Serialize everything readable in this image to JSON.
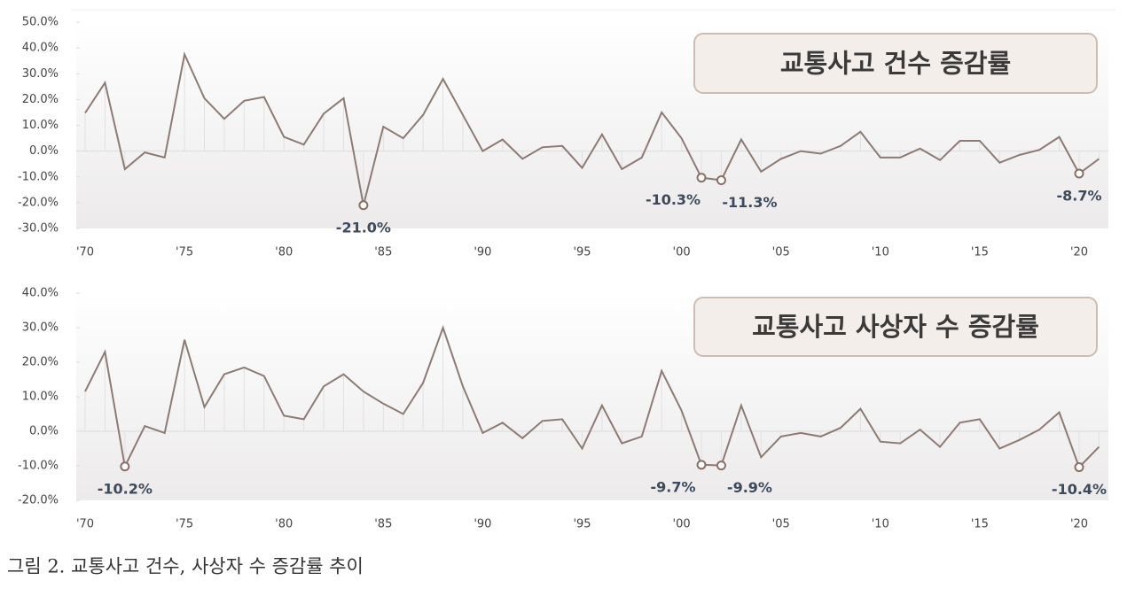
{
  "chart_data": [
    {
      "type": "line",
      "title": "교통사고 건수 증감률",
      "color": "#8c7b75",
      "categories": [
        "'70",
        null,
        null,
        null,
        null,
        "'75",
        null,
        null,
        null,
        null,
        "'80",
        null,
        null,
        null,
        null,
        "'85",
        null,
        null,
        null,
        null,
        "'90",
        null,
        null,
        null,
        null,
        "'95",
        null,
        null,
        null,
        null,
        "'00",
        null,
        null,
        null,
        null,
        "'05",
        null,
        null,
        null,
        null,
        "'10",
        null,
        null,
        null,
        null,
        "'15",
        null,
        null,
        null,
        null,
        "'20",
        null
      ],
      "values": [
        14.8,
        26.5,
        -7,
        -0.5,
        -2.5,
        37.5,
        20.5,
        12.5,
        19.5,
        21,
        5.5,
        2.5,
        14.5,
        20.5,
        -21.0,
        9.5,
        5,
        14,
        28,
        14,
        0,
        4.5,
        -3,
        1.5,
        2,
        -6.5,
        6.5,
        -7,
        -2.5,
        15,
        5,
        -10.3,
        -11.3,
        4.5,
        -8,
        -3,
        0,
        -1,
        2,
        7.5,
        -2.5,
        -2.5,
        1,
        -3.5,
        4,
        4,
        -4.5,
        -1.5,
        0.5,
        5.5,
        -8.7,
        -3
      ],
      "value_labels": [
        null,
        null,
        null,
        null,
        null,
        null,
        null,
        null,
        null,
        null,
        null,
        null,
        null,
        null,
        "-21.0%",
        null,
        null,
        null,
        null,
        null,
        null,
        null,
        null,
        null,
        null,
        null,
        null,
        null,
        null,
        null,
        null,
        "-10.3%",
        "-11.3%",
        null,
        null,
        null,
        null,
        null,
        null,
        null,
        null,
        null,
        null,
        null,
        null,
        null,
        null,
        null,
        null,
        null,
        "-8.7%",
        null
      ],
      "ylim": [
        -30,
        50
      ],
      "yticks": [
        {
          "value": -30,
          "label": "-30.0%"
        },
        {
          "value": -20,
          "label": "-20.0%"
        },
        {
          "value": -10,
          "label": "-10.0%"
        },
        {
          "value": 0,
          "label": "0.0%"
        },
        {
          "value": 10,
          "label": "10.0%"
        },
        {
          "value": 20,
          "label": "20.0%"
        },
        {
          "value": 30,
          "label": "30.0%"
        },
        {
          "value": 40,
          "label": "40.0%"
        },
        {
          "value": 50,
          "label": "50.0%"
        }
      ]
    },
    {
      "type": "line",
      "title": "교통사고 사상자 수 증감률",
      "color": "#8c7b75",
      "categories": [
        "'70",
        null,
        null,
        null,
        null,
        "'75",
        null,
        null,
        null,
        null,
        "'80",
        null,
        null,
        null,
        null,
        "'85",
        null,
        null,
        null,
        null,
        "'90",
        null,
        null,
        null,
        null,
        "'95",
        null,
        null,
        null,
        null,
        "'00",
        null,
        null,
        null,
        null,
        "'05",
        null,
        null,
        null,
        null,
        "'10",
        null,
        null,
        null,
        null,
        "'15",
        null,
        null,
        null,
        null,
        "'20",
        null
      ],
      "values": [
        11.5,
        23,
        -10.2,
        1.5,
        -0.5,
        26.5,
        7,
        16.5,
        18.5,
        16,
        4.5,
        3.5,
        13,
        16.5,
        11.5,
        8,
        5,
        14,
        30,
        13,
        -0.5,
        2.5,
        -2,
        3,
        3.5,
        -5,
        7.5,
        -3.5,
        -1.5,
        17.5,
        6,
        -9.7,
        -9.9,
        7.5,
        -7.5,
        -1.5,
        -0.5,
        -1.5,
        1,
        6.5,
        -3,
        -3.5,
        0.5,
        -4.5,
        2.5,
        3.5,
        -5,
        -2.5,
        0.5,
        5.5,
        -10.4,
        -4.5
      ],
      "value_labels": [
        null,
        null,
        "-10.2%",
        null,
        null,
        null,
        null,
        null,
        null,
        null,
        null,
        null,
        null,
        null,
        null,
        null,
        null,
        null,
        null,
        null,
        null,
        null,
        null,
        null,
        null,
        null,
        null,
        null,
        null,
        null,
        null,
        "-9.7%",
        "-9.9%",
        null,
        null,
        null,
        null,
        null,
        null,
        null,
        null,
        null,
        null,
        null,
        null,
        null,
        null,
        null,
        null,
        null,
        "-10.4%",
        null
      ],
      "ylim": [
        -20,
        40
      ],
      "yticks": [
        {
          "value": -20,
          "label": "-20.0%"
        },
        {
          "value": -10,
          "label": "-10.0%"
        },
        {
          "value": 0,
          "label": "0.0%"
        },
        {
          "value": 10,
          "label": "10.0%"
        },
        {
          "value": 20,
          "label": "20.0%"
        },
        {
          "value": 30,
          "label": "30.0%"
        },
        {
          "value": 40,
          "label": "40.0%"
        }
      ]
    }
  ],
  "caption": "그림 2. 교통사고 건수, 사상자 수 증감률 추이"
}
